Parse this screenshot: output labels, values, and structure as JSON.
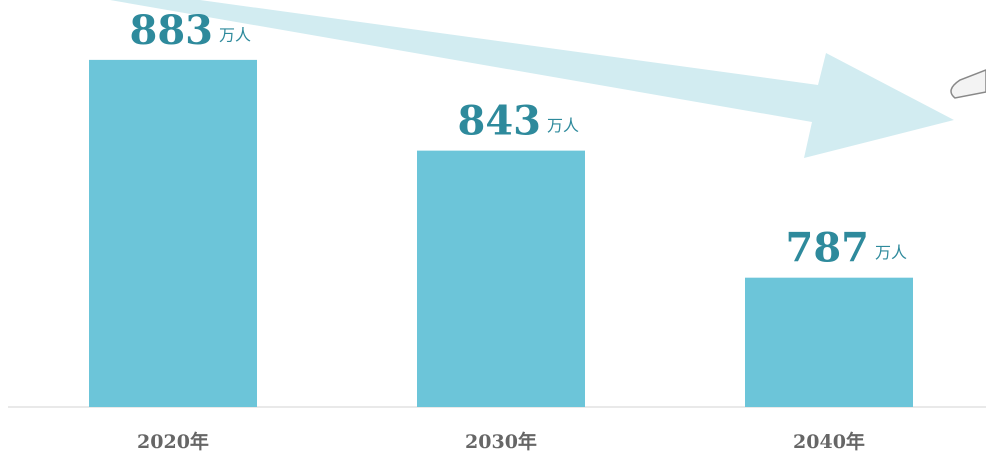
{
  "chart_data": {
    "type": "bar",
    "categories": [
      "2020年",
      "2030年",
      "2040年"
    ],
    "values": [
      883,
      843,
      787
    ],
    "unit": "万人",
    "color": "#6cc5d9",
    "ylim": [
      730,
      890
    ]
  }
}
